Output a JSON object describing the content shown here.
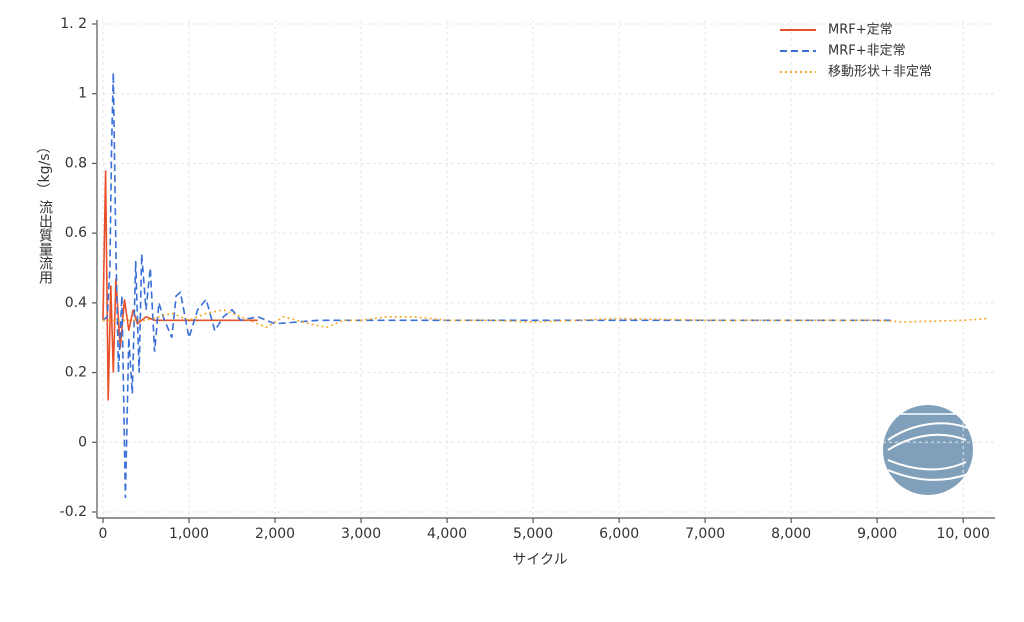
{
  "chart_data": {
    "type": "line",
    "xlabel": "サイクル",
    "ylabel": "流出質量流用",
    "yunit": "（kg/s）",
    "xlim": [
      -70,
      10370
    ],
    "ylim": [
      -0.2,
      1.2
    ],
    "xticks": [
      0,
      {
        "value": 1000,
        "label": "1,000"
      },
      {
        "value": 2000,
        "label": "2,000"
      },
      {
        "value": 3000,
        "label": "3,000"
      },
      {
        "value": 4000,
        "label": "4,000"
      },
      {
        "value": 5000,
        "label": "5,000"
      },
      {
        "value": 6000,
        "label": "6,000"
      },
      {
        "value": 7000,
        "label": "7,000"
      },
      {
        "value": 8000,
        "label": "8,000"
      },
      {
        "value": 9000,
        "label": "9,000"
      },
      {
        "value": 10000,
        "label": "10, 000"
      }
    ],
    "yticks": [
      -0.2,
      0,
      0.2,
      0.4,
      0.6,
      0.8,
      1,
      {
        "value": 1.2,
        "label": "1. 2"
      }
    ],
    "grid": true,
    "legend": "top-right",
    "series": [
      {
        "name": "MRF+定常",
        "color": "#e8502a",
        "dash": "solid",
        "x": [
          0,
          30,
          60,
          90,
          120,
          150,
          200,
          250,
          300,
          350,
          400,
          500,
          600,
          800,
          1000,
          1200,
          1500,
          1800
        ],
        "values": [
          0.35,
          0.78,
          0.12,
          0.45,
          0.2,
          0.47,
          0.27,
          0.41,
          0.32,
          0.38,
          0.34,
          0.36,
          0.35,
          0.35,
          0.35,
          0.35,
          0.35,
          0.35
        ]
      },
      {
        "name": "MRF+非定常",
        "color": "#3a6fd8",
        "dash": "dashed",
        "x": [
          0,
          50,
          80,
          100,
          120,
          150,
          180,
          220,
          260,
          300,
          340,
          380,
          420,
          450,
          500,
          550,
          600,
          650,
          700,
          800,
          850,
          900,
          1000,
          1100,
          1200,
          1300,
          1400,
          1500,
          1600,
          1800,
          2000,
          2500,
          3000,
          4000,
          5000,
          6000,
          7000,
          8000,
          9000,
          9200
        ],
        "values": [
          0.35,
          0.36,
          0.5,
          0.85,
          1.06,
          0.55,
          0.2,
          0.42,
          -0.16,
          0.3,
          0.14,
          0.52,
          0.2,
          0.54,
          0.38,
          0.5,
          0.26,
          0.4,
          0.36,
          0.3,
          0.42,
          0.43,
          0.3,
          0.38,
          0.41,
          0.32,
          0.36,
          0.38,
          0.35,
          0.36,
          0.34,
          0.35,
          0.35,
          0.35,
          0.35,
          0.35,
          0.35,
          0.35,
          0.35,
          0.35
        ]
      },
      {
        "name": "移動形状＋非定常",
        "color": "#f5a623",
        "dash": "dotted",
        "x": [
          0,
          500,
          800,
          1000,
          1200,
          1400,
          1600,
          1900,
          2100,
          2400,
          2600,
          2800,
          3000,
          3300,
          3600,
          4000,
          4500,
          5000,
          5500,
          6000,
          7000,
          8000,
          9000,
          9300,
          10000,
          10300
        ],
        "values": [
          0.35,
          0.35,
          0.37,
          0.35,
          0.37,
          0.38,
          0.36,
          0.33,
          0.36,
          0.34,
          0.33,
          0.35,
          0.35,
          0.36,
          0.36,
          0.35,
          0.35,
          0.345,
          0.35,
          0.355,
          0.35,
          0.35,
          0.35,
          0.345,
          0.35,
          0.355
        ]
      }
    ]
  }
}
